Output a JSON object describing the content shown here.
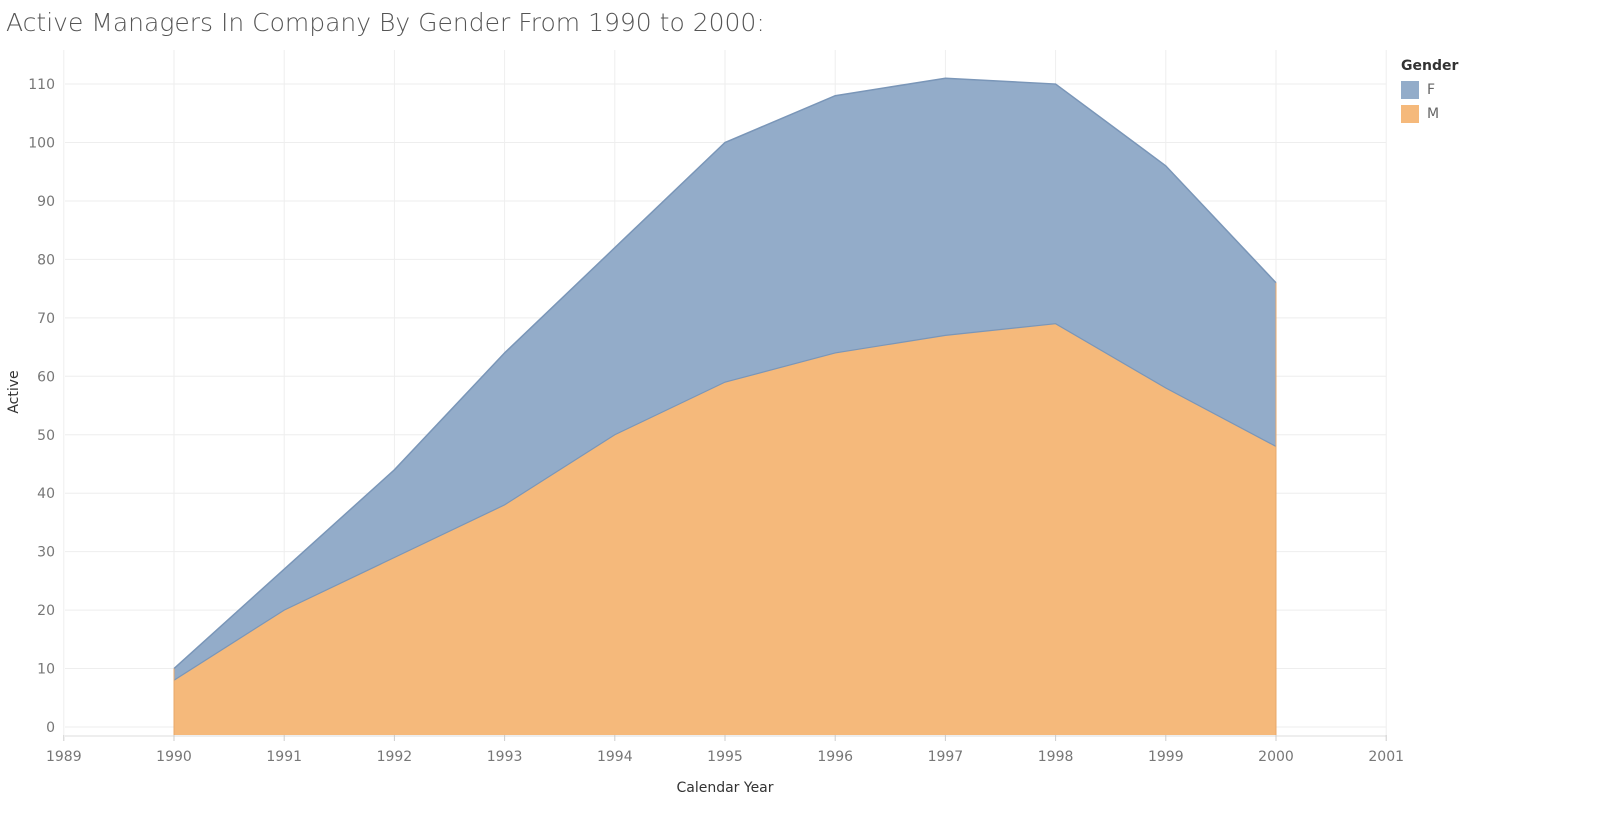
{
  "chart_data": {
    "type": "area",
    "stacked": true,
    "title": "Active Managers In Company By Gender From 1990 to 2000:",
    "xlabel": "Calendar Year",
    "ylabel": "Active",
    "xlim": [
      1989,
      2001
    ],
    "ylim": [
      0,
      110
    ],
    "x_ticks": [
      1989,
      1990,
      1991,
      1992,
      1993,
      1994,
      1995,
      1996,
      1997,
      1998,
      1999,
      2000,
      2001
    ],
    "y_ticks": [
      0,
      10,
      20,
      30,
      40,
      50,
      60,
      70,
      80,
      90,
      100,
      110
    ],
    "x": [
      1990,
      1991,
      1992,
      1993,
      1994,
      1995,
      1996,
      1997,
      1998,
      1999,
      2000
    ],
    "series": [
      {
        "name": "M",
        "color": "#f5b97b",
        "values": [
          8,
          20,
          29,
          38,
          50,
          59,
          64,
          67,
          69,
          58,
          48
        ]
      },
      {
        "name": "F",
        "color": "#93acc9",
        "values": [
          2,
          7,
          15,
          26,
          32,
          41,
          44,
          44,
          41,
          38,
          28
        ]
      }
    ],
    "grid": true,
    "legend_title": "Gender",
    "legend_position": "top-right"
  }
}
